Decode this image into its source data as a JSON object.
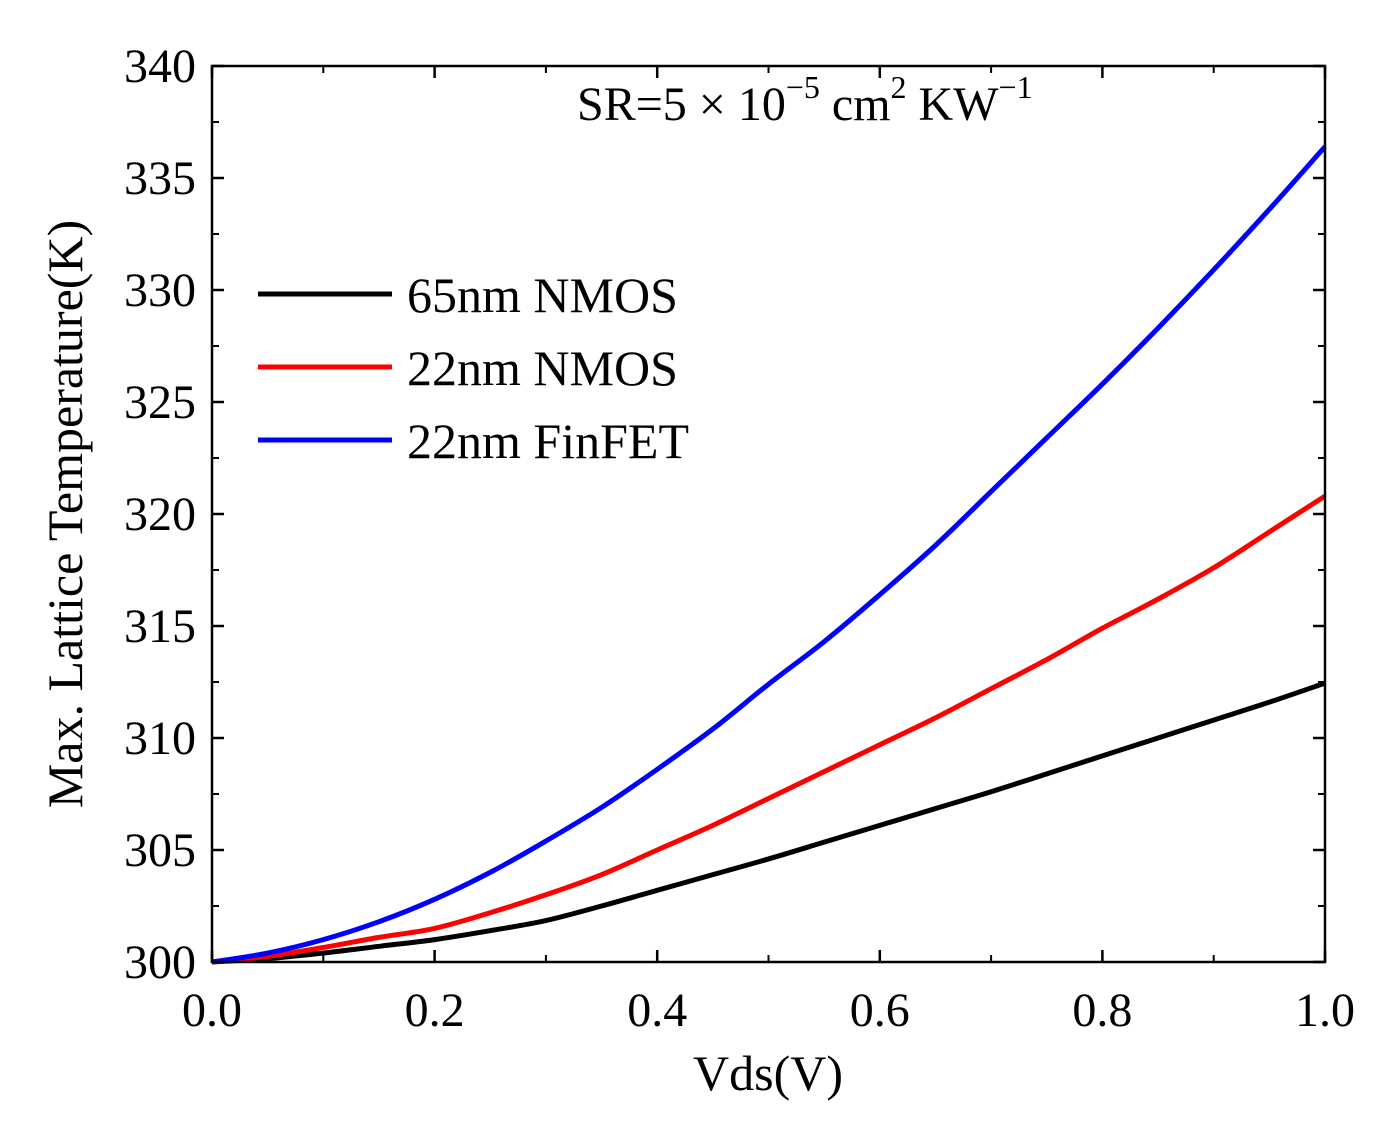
{
  "chart_data": {
    "type": "line",
    "title": "",
    "annotation": {
      "base": "SR=5 × 10",
      "exp1": "−5",
      "mid": " cm",
      "exp2": "2",
      "end": " KW",
      "exp3": "−1"
    },
    "xlabel": "Vds(V)",
    "ylabel": "Max. Lattice Temperature(K)",
    "xlim": [
      0.0,
      1.0
    ],
    "ylim": [
      300,
      340
    ],
    "xticks": [
      0.0,
      0.2,
      0.4,
      0.6,
      0.8,
      1.0
    ],
    "xtick_labels": [
      "0.0",
      "0.2",
      "0.4",
      "0.6",
      "0.8",
      "1.0"
    ],
    "yticks": [
      300,
      305,
      310,
      315,
      320,
      325,
      330,
      335,
      340
    ],
    "ytick_labels": [
      "300",
      "305",
      "310",
      "315",
      "320",
      "325",
      "330",
      "335",
      "340"
    ],
    "grid": false,
    "legend_position": "upper-left",
    "x": [
      0.0,
      0.05,
      0.1,
      0.15,
      0.2,
      0.25,
      0.3,
      0.35,
      0.4,
      0.45,
      0.5,
      0.55,
      0.6,
      0.65,
      0.7,
      0.75,
      0.8,
      0.85,
      0.9,
      0.95,
      1.0
    ],
    "series": [
      {
        "name": "65nm NMOS",
        "color": "#000000",
        "values": [
          300.0,
          300.15,
          300.4,
          300.7,
          301.0,
          301.4,
          301.85,
          302.5,
          303.2,
          303.9,
          304.6,
          305.35,
          306.1,
          306.85,
          307.6,
          308.4,
          309.2,
          310.0,
          310.8,
          311.6,
          312.45
        ]
      },
      {
        "name": "22nm NMOS",
        "color": "#ff0000",
        "values": [
          300.0,
          300.25,
          300.65,
          301.1,
          301.5,
          302.2,
          303.0,
          303.9,
          305.0,
          306.1,
          307.3,
          308.5,
          309.7,
          310.9,
          312.2,
          313.5,
          314.9,
          316.2,
          317.6,
          319.2,
          320.8
        ]
      },
      {
        "name": "22nm FinFET",
        "color": "#0000ff",
        "values": [
          300.0,
          300.4,
          301.0,
          301.8,
          302.8,
          304.0,
          305.4,
          306.9,
          308.6,
          310.4,
          312.4,
          314.3,
          316.4,
          318.6,
          321.0,
          323.4,
          325.8,
          328.3,
          330.9,
          333.6,
          336.4
        ]
      }
    ]
  }
}
